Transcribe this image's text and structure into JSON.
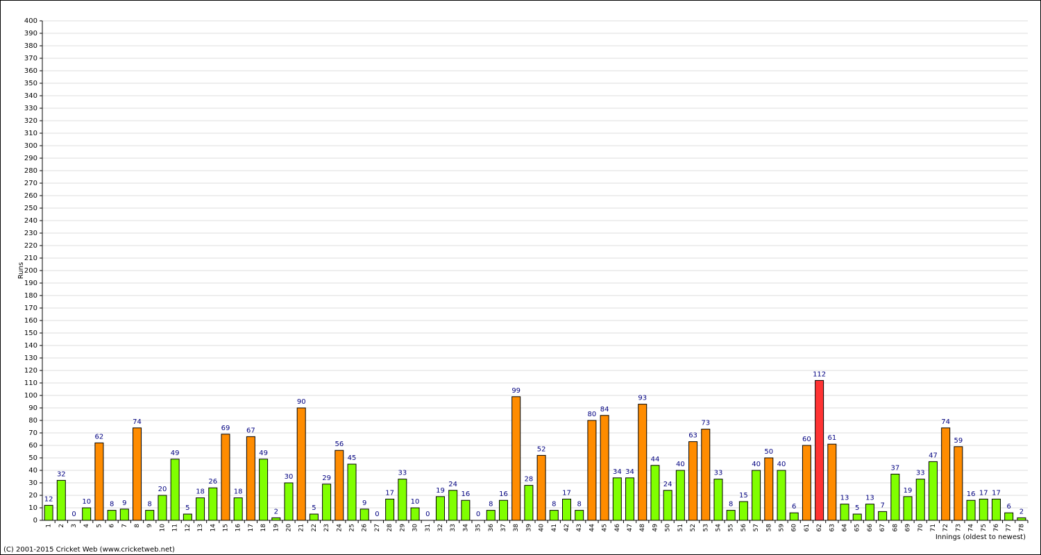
{
  "chart_data": {
    "type": "bar",
    "y_label": "Runs",
    "x_label": "Innings (oldest to newest)",
    "footer": "(C) 2001-2015 Cricket Web (www.cricketweb.net)",
    "categories": [
      "1",
      "2",
      "3",
      "4",
      "5",
      "6",
      "7",
      "8",
      "9",
      "10",
      "11",
      "12",
      "13",
      "14",
      "15",
      "16",
      "17",
      "18",
      "19",
      "20",
      "21",
      "22",
      "23",
      "24",
      "25",
      "26",
      "27",
      "28",
      "29",
      "30",
      "31",
      "32",
      "33",
      "34",
      "35",
      "36",
      "37",
      "38",
      "39",
      "40",
      "41",
      "42",
      "43",
      "44",
      "45",
      "46",
      "47",
      "48",
      "49",
      "50",
      "51",
      "52",
      "53",
      "54",
      "55",
      "56",
      "57",
      "58",
      "59",
      "60",
      "61",
      "62",
      "63",
      "64",
      "65",
      "66",
      "67",
      "68",
      "69",
      "70",
      "71",
      "72",
      "73",
      "74",
      "75",
      "76",
      "77",
      "78"
    ],
    "values": [
      12,
      32,
      0,
      10,
      62,
      8,
      9,
      74,
      8,
      20,
      49,
      5,
      18,
      26,
      69,
      18,
      67,
      49,
      2,
      30,
      90,
      5,
      29,
      56,
      45,
      9,
      0,
      17,
      33,
      10,
      0,
      19,
      24,
      16,
      0,
      8,
      16,
      99,
      28,
      52,
      8,
      17,
      8,
      80,
      84,
      34,
      34,
      93,
      44,
      24,
      40,
      63,
      73,
      33,
      8,
      15,
      40,
      50,
      40,
      6,
      60,
      112,
      61,
      13,
      5,
      13,
      7,
      37,
      19,
      33,
      47,
      74,
      59,
      16,
      17,
      17,
      6,
      2
    ],
    "colors": [
      "#80ff00",
      "#80ff00",
      "#80ff00",
      "#80ff00",
      "#ff8c00",
      "#80ff00",
      "#80ff00",
      "#ff8c00",
      "#80ff00",
      "#80ff00",
      "#80ff00",
      "#80ff00",
      "#80ff00",
      "#80ff00",
      "#ff8c00",
      "#80ff00",
      "#ff8c00",
      "#80ff00",
      "#80ff00",
      "#80ff00",
      "#ff8c00",
      "#80ff00",
      "#80ff00",
      "#ff8c00",
      "#80ff00",
      "#80ff00",
      "#80ff00",
      "#80ff00",
      "#80ff00",
      "#80ff00",
      "#80ff00",
      "#80ff00",
      "#80ff00",
      "#80ff00",
      "#80ff00",
      "#80ff00",
      "#80ff00",
      "#ff8c00",
      "#80ff00",
      "#ff8c00",
      "#80ff00",
      "#80ff00",
      "#80ff00",
      "#ff8c00",
      "#ff8c00",
      "#80ff00",
      "#80ff00",
      "#ff8c00",
      "#80ff00",
      "#80ff00",
      "#80ff00",
      "#ff8c00",
      "#ff8c00",
      "#80ff00",
      "#80ff00",
      "#80ff00",
      "#80ff00",
      "#ff8c00",
      "#80ff00",
      "#80ff00",
      "#ff8c00",
      "#ff3333",
      "#ff8c00",
      "#80ff00",
      "#80ff00",
      "#80ff00",
      "#80ff00",
      "#80ff00",
      "#80ff00",
      "#80ff00",
      "#80ff00",
      "#ff8c00",
      "#ff8c00",
      "#80ff00",
      "#80ff00",
      "#80ff00",
      "#80ff00",
      "#80ff00"
    ],
    "ylim": [
      0,
      400
    ],
    "yticks": [
      0,
      10,
      20,
      30,
      40,
      50,
      60,
      70,
      80,
      90,
      100,
      110,
      120,
      130,
      140,
      150,
      160,
      170,
      180,
      190,
      200,
      210,
      220,
      230,
      240,
      250,
      260,
      270,
      280,
      290,
      300,
      310,
      320,
      330,
      340,
      350,
      360,
      370,
      380,
      390,
      400
    ],
    "grid": true
  }
}
